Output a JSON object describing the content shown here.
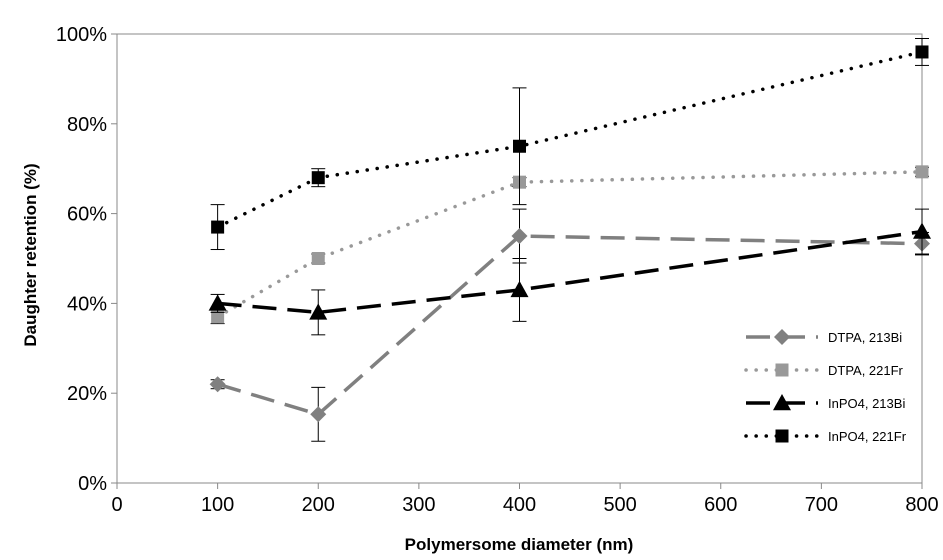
{
  "chart_data": {
    "type": "line",
    "title": "",
    "xlabel": "Polymersome diameter (nm)",
    "ylabel": "Daughter retention (%)",
    "xlim": [
      0,
      800
    ],
    "ylim": [
      0,
      100
    ],
    "x_ticks": [
      0,
      100,
      200,
      300,
      400,
      500,
      600,
      700,
      800
    ],
    "x_tick_labels": [
      "0",
      "100",
      "200",
      "300",
      "400",
      "500",
      "600",
      "700",
      "800"
    ],
    "y_ticks": [
      0,
      20,
      40,
      60,
      80,
      100
    ],
    "y_tick_labels": [
      "0%",
      "20%",
      "40%",
      "60%",
      "80%",
      "100%"
    ],
    "grid": false,
    "legend_position": "bottom-right",
    "series": [
      {
        "name": "DTPA, 213Bi",
        "x": [
          100,
          200,
          400,
          800
        ],
        "y": [
          22,
          15.3,
          55,
          53.3
        ],
        "error": [
          1,
          6,
          6,
          2.5
        ],
        "color": "#808080",
        "line": "dashed",
        "marker": "diamond"
      },
      {
        "name": "DTPA, 221Fr",
        "x": [
          100,
          200,
          400,
          800
        ],
        "y": [
          37,
          50,
          67,
          69.3
        ],
        "error": [
          1.5,
          1,
          1,
          1
        ],
        "color": "#999999",
        "line": "dotted",
        "marker": "square"
      },
      {
        "name": "InPO4, 213Bi",
        "x": [
          100,
          200,
          400,
          800
        ],
        "y": [
          40,
          38,
          43,
          56
        ],
        "error": [
          2,
          5,
          7,
          5
        ],
        "color": "#000000",
        "line": "dashed",
        "marker": "triangle"
      },
      {
        "name": "InPO4, 221Fr",
        "x": [
          100,
          200,
          400,
          800
        ],
        "y": [
          57,
          68,
          75,
          96
        ],
        "error": [
          5,
          2,
          13,
          3
        ],
        "color": "#000000",
        "line": "dotted",
        "marker": "square"
      }
    ]
  }
}
